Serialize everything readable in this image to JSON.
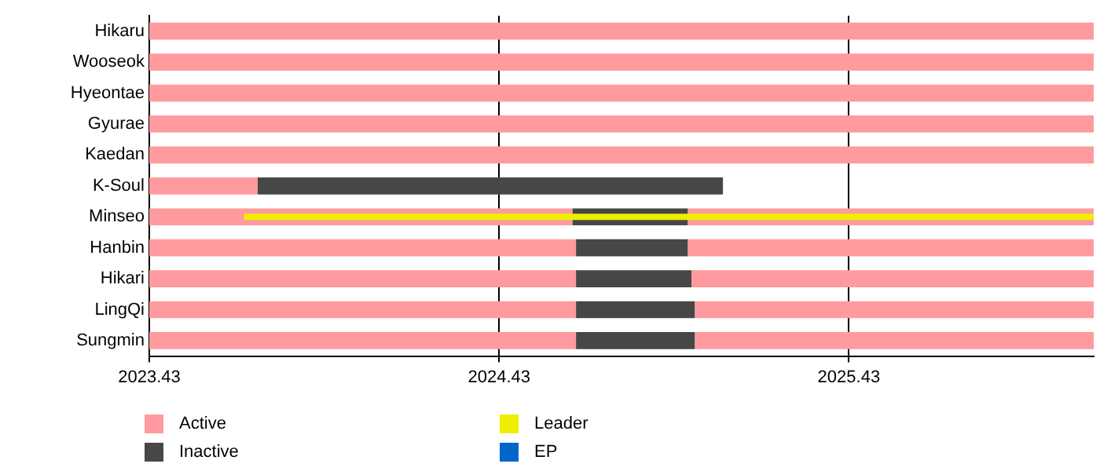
{
  "chart_data": {
    "type": "bar",
    "orientation": "horizontal",
    "categories": [
      "Hikaru",
      "Wooseok",
      "Hyeontae",
      "Gyurae",
      "Kaedan",
      "K-Soul",
      "Minseo",
      "Hanbin",
      "Hikari",
      "LingQi",
      "Sungmin"
    ],
    "series": [
      {
        "name": "Active",
        "color": "#ff9a9e",
        "base": [
          2023.43,
          2023.43,
          2023.43,
          2023.43,
          2023.43,
          2023.43,
          2023.43,
          2023.43,
          2023.43,
          2023.43,
          2023.43
        ],
        "values": [
          2.7,
          2.7,
          2.7,
          2.7,
          2.7,
          0.31,
          1.21,
          1.22,
          1.22,
          1.22,
          1.22
        ]
      },
      {
        "name": "Inactive",
        "color": "#474747",
        "base": [
          null,
          null,
          null,
          null,
          null,
          2023.74,
          2024.64,
          2024.65,
          2024.65,
          2024.65,
          2024.65
        ],
        "values": [
          null,
          null,
          null,
          null,
          null,
          1.33,
          0.33,
          0.32,
          0.33,
          0.34,
          0.34
        ]
      },
      {
        "color": "#ff9a9e",
        "base": [
          null,
          null,
          null,
          null,
          null,
          null,
          2024.97,
          2024.97,
          2024.98,
          2024.99,
          2024.99
        ],
        "values": [
          null,
          null,
          null,
          null,
          null,
          null,
          1.16,
          1.16,
          1.15,
          1.14,
          1.14
        ]
      },
      {
        "name": "Leader",
        "color": "#eeee00",
        "base": [
          null,
          null,
          null,
          null,
          null,
          null,
          2023.7,
          null,
          null,
          null,
          null
        ],
        "values": [
          null,
          null,
          null,
          null,
          null,
          null,
          2.43,
          null,
          null,
          null,
          null
        ]
      },
      {
        "name": "EP",
        "color": "#0066cc",
        "values": [
          null,
          null,
          null,
          null,
          null,
          null,
          null,
          null,
          null,
          null,
          null
        ]
      }
    ],
    "xlim": [
      2023.43,
      2026.13
    ],
    "xticks": [
      2023.43,
      2024.43,
      2025.43
    ],
    "grid": "x",
    "legend": "bottom"
  }
}
